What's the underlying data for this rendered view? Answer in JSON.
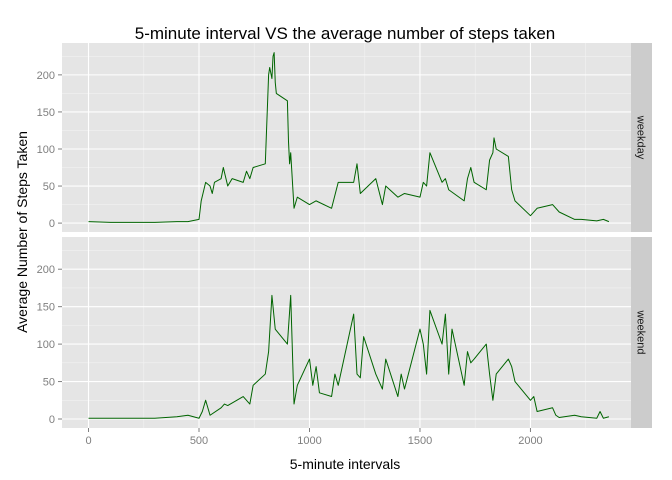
{
  "chart_data": {
    "type": "line",
    "title": "5-minute interval VS the average number of steps taken",
    "xlabel": "5-minute intervals",
    "ylabel": "Average Number of Steps Taken",
    "xlim": [
      -120,
      2455
    ],
    "ylim": [
      -12,
      243
    ],
    "x_ticks": [
      0,
      500,
      1000,
      1500,
      2000
    ],
    "y_ticks": [
      0,
      50,
      100,
      150,
      200
    ],
    "grid": true,
    "line_color": "#006400",
    "panel_background": "#e5e5e5",
    "strip_background": "#cccccc",
    "panels": [
      {
        "label": "weekday",
        "x": [
          0,
          100,
          200,
          300,
          400,
          450,
          500,
          510,
          530,
          550,
          560,
          570,
          600,
          610,
          630,
          650,
          700,
          715,
          730,
          745,
          800,
          815,
          820,
          830,
          835,
          840,
          845,
          850,
          900,
          905,
          910,
          915,
          930,
          945,
          1000,
          1030,
          1100,
          1130,
          1200,
          1215,
          1230,
          1300,
          1330,
          1345,
          1400,
          1430,
          1500,
          1515,
          1530,
          1545,
          1600,
          1615,
          1630,
          1700,
          1715,
          1730,
          1745,
          1800,
          1815,
          1830,
          1835,
          1845,
          1900,
          1915,
          1930,
          2000,
          2030,
          2100,
          2130,
          2200,
          2230,
          2300,
          2330,
          2355
        ],
        "y": [
          2,
          1,
          1,
          1,
          2,
          2,
          5,
          30,
          55,
          50,
          40,
          55,
          60,
          75,
          50,
          60,
          55,
          70,
          60,
          75,
          80,
          200,
          210,
          195,
          225,
          230,
          190,
          175,
          165,
          110,
          80,
          95,
          20,
          35,
          25,
          30,
          20,
          55,
          55,
          80,
          40,
          60,
          25,
          50,
          35,
          40,
          35,
          55,
          50,
          95,
          55,
          60,
          45,
          30,
          60,
          75,
          55,
          45,
          85,
          95,
          115,
          100,
          90,
          45,
          30,
          10,
          20,
          25,
          15,
          5,
          5,
          3,
          5,
          2
        ]
      },
      {
        "label": "weekend",
        "x": [
          0,
          100,
          200,
          300,
          400,
          450,
          500,
          515,
          530,
          550,
          600,
          615,
          630,
          700,
          730,
          745,
          800,
          815,
          830,
          845,
          900,
          915,
          930,
          945,
          1000,
          1015,
          1030,
          1045,
          1100,
          1115,
          1130,
          1200,
          1215,
          1230,
          1245,
          1300,
          1330,
          1345,
          1400,
          1415,
          1430,
          1500,
          1515,
          1530,
          1545,
          1600,
          1615,
          1630,
          1645,
          1700,
          1715,
          1730,
          1745,
          1800,
          1815,
          1830,
          1845,
          1900,
          1915,
          1930,
          2000,
          2015,
          2030,
          2100,
          2115,
          2130,
          2200,
          2230,
          2300,
          2315,
          2330,
          2355
        ],
        "y": [
          1,
          1,
          1,
          1,
          3,
          5,
          1,
          10,
          25,
          5,
          15,
          20,
          18,
          30,
          20,
          45,
          60,
          90,
          165,
          120,
          100,
          165,
          20,
          45,
          80,
          45,
          70,
          35,
          30,
          60,
          45,
          140,
          60,
          55,
          110,
          60,
          40,
          80,
          30,
          60,
          40,
          120,
          100,
          60,
          145,
          100,
          140,
          60,
          120,
          45,
          90,
          75,
          80,
          100,
          60,
          25,
          60,
          80,
          70,
          50,
          25,
          30,
          10,
          15,
          5,
          2,
          5,
          3,
          1,
          10,
          1,
          3
        ]
      }
    ]
  }
}
